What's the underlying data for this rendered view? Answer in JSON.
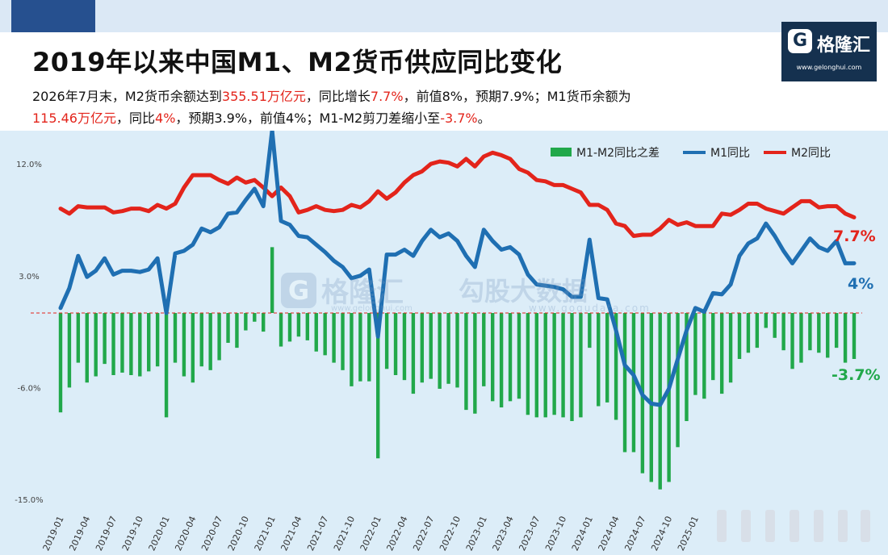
{
  "title": "2019年以来中国M1、M2货币供应同比变化",
  "subtitle": {
    "l1_a": "2026年7月末，M2货币余额达到",
    "l1_b": "355.51万亿元",
    "l1_c": "，同比增长",
    "l1_d": "7.7%",
    "l1_e": "，前值8%，预期7.9%；M1货币余额为",
    "l2_a": "115.46万亿元",
    "l2_b": "，同比",
    "l2_c": "4%",
    "l2_d": "，预期3.9%，前值4%；M1-M2剪刀差缩小至",
    "l2_e": "-3.7%",
    "l2_f": "。"
  },
  "logo": {
    "mark": "G",
    "name": "格隆汇",
    "url": "www.gelonghui.com"
  },
  "watermark": {
    "mark": "G",
    "name": "格隆汇",
    "url": "www.gelonghui.com",
    "name2": "勾股大数据",
    "url2": "www.gogudata.com"
  },
  "colors": {
    "bg": "#dcedf8",
    "m2": "#e3241b",
    "m1": "#1f6fb2",
    "diff": "#21a84a",
    "zero": "#e3241b"
  },
  "chart_data": {
    "type": "line+bar",
    "x": [
      "2019-01",
      "2019-02",
      "2019-03",
      "2019-04",
      "2019-05",
      "2019-06",
      "2019-07",
      "2019-08",
      "2019-09",
      "2019-10",
      "2019-11",
      "2019-12",
      "2020-01",
      "2020-02",
      "2020-03",
      "2020-04",
      "2020-05",
      "2020-06",
      "2020-07",
      "2020-08",
      "2020-09",
      "2020-10",
      "2020-11",
      "2020-12",
      "2021-01",
      "2021-02",
      "2021-03",
      "2021-04",
      "2021-05",
      "2021-06",
      "2021-07",
      "2021-08",
      "2021-09",
      "2021-10",
      "2021-11",
      "2021-12",
      "2022-01",
      "2022-02",
      "2022-03",
      "2022-04",
      "2022-05",
      "2022-06",
      "2022-07",
      "2022-08",
      "2022-09",
      "2022-10",
      "2022-11",
      "2022-12",
      "2023-01",
      "2023-02",
      "2023-03",
      "2023-04",
      "2023-05",
      "2023-06",
      "2023-07",
      "2023-08",
      "2023-09",
      "2023-10",
      "2023-11",
      "2023-12",
      "2024-01",
      "2024-02",
      "2024-03",
      "2024-04",
      "2024-05",
      "2024-06",
      "2024-07",
      "2024-08",
      "2024-09",
      "2024-10",
      "2024-11",
      "2024-12",
      "2025-01",
      "2025-02",
      "2025-03",
      "2025-04",
      "2025-05",
      "2025-06",
      "2025-07",
      "2025-08",
      "2025-09",
      "2025-10",
      "2025-11",
      "2025-12",
      "2026-01",
      "2026-02",
      "2026-03",
      "2026-04",
      "2026-05",
      "2026-06",
      "2026-07"
    ],
    "xticks": [
      "2019-01",
      "2019-04",
      "2019-07",
      "2019-10",
      "2020-01",
      "2020-04",
      "2020-07",
      "2020-10",
      "2021-01",
      "2021-04",
      "2021-07",
      "2021-10",
      "2022-01",
      "2022-04",
      "2022-07",
      "2022-10",
      "2023-01",
      "2023-04",
      "2023-07",
      "2023-10",
      "2024-01",
      "2024-04",
      "2024-07",
      "2024-10",
      "2025-01"
    ],
    "yticks": [
      "12.0%",
      "3.0%",
      "-6.0%",
      "-15.0%"
    ],
    "ytick_values": [
      12,
      3,
      -6,
      -15
    ],
    "ylim": [
      -15,
      14
    ],
    "zero_line": true,
    "legend": {
      "position": "top-right",
      "items": [
        "M1-M2同比之差",
        "M1同比",
        "M2同比"
      ]
    },
    "series": [
      {
        "name": "M2同比",
        "color": "#e3241b",
        "values": [
          8.4,
          8.0,
          8.6,
          8.5,
          8.5,
          8.5,
          8.1,
          8.2,
          8.4,
          8.4,
          8.2,
          8.7,
          8.4,
          8.8,
          10.1,
          11.1,
          11.1,
          11.1,
          10.7,
          10.4,
          10.9,
          10.5,
          10.7,
          10.1,
          9.4,
          10.1,
          9.4,
          8.1,
          8.3,
          8.6,
          8.3,
          8.2,
          8.3,
          8.7,
          8.5,
          9.0,
          9.8,
          9.2,
          9.7,
          10.5,
          11.1,
          11.4,
          12.0,
          12.2,
          12.1,
          11.8,
          12.4,
          11.8,
          12.6,
          12.9,
          12.7,
          12.4,
          11.6,
          11.3,
          10.7,
          10.6,
          10.3,
          10.3,
          10.0,
          9.7,
          8.7,
          8.7,
          8.3,
          7.2,
          7.0,
          6.2,
          6.3,
          6.3,
          6.8,
          7.5,
          7.1,
          7.3,
          7.0,
          7.0,
          7.0,
          8.0,
          7.9,
          8.3,
          8.8,
          8.8,
          8.4,
          8.2,
          8.0,
          8.5,
          9.0,
          9.0,
          8.5,
          8.6,
          8.6,
          8.0,
          7.7
        ]
      },
      {
        "name": "M1同比",
        "color": "#1f6fb2",
        "values": [
          0.4,
          2.0,
          4.6,
          2.9,
          3.4,
          4.4,
          3.1,
          3.4,
          3.4,
          3.3,
          3.5,
          4.4,
          0.0,
          4.8,
          5.0,
          5.5,
          6.8,
          6.5,
          6.9,
          8.0,
          8.1,
          9.1,
          10.0,
          8.6,
          14.7,
          7.4,
          7.1,
          6.2,
          6.1,
          5.5,
          4.9,
          4.2,
          3.7,
          2.8,
          3.0,
          3.5,
          -1.9,
          4.7,
          4.7,
          5.1,
          4.6,
          5.8,
          6.7,
          6.1,
          6.4,
          5.8,
          4.6,
          3.7,
          6.7,
          5.8,
          5.1,
          5.3,
          4.7,
          3.1,
          2.3,
          2.2,
          2.1,
          1.9,
          1.3,
          1.3,
          5.9,
          1.2,
          1.1,
          -1.4,
          -4.2,
          -5.0,
          -6.6,
          -7.3,
          -7.4,
          -6.1,
          -3.7,
          -1.4,
          0.4,
          0.1,
          1.6,
          1.5,
          2.3,
          4.6,
          5.6,
          6.0,
          7.2,
          6.2,
          5.0,
          4.0,
          5.0,
          6.0,
          5.3,
          5.0,
          5.8,
          4.0,
          4.0
        ]
      },
      {
        "name": "M1-M2同比之差",
        "color": "#21a84a",
        "type": "bar",
        "values": [
          -8.0,
          -6.0,
          -4.0,
          -5.6,
          -5.1,
          -4.1,
          -5.0,
          -4.8,
          -5.0,
          -5.1,
          -4.7,
          -4.3,
          -8.4,
          -4.0,
          -5.1,
          -5.6,
          -4.3,
          -4.6,
          -3.8,
          -2.4,
          -2.8,
          -1.4,
          -0.7,
          -1.5,
          5.3,
          -2.7,
          -2.3,
          -1.9,
          -2.2,
          -3.1,
          -3.4,
          -4.0,
          -4.6,
          -5.9,
          -5.5,
          -5.5,
          -11.7,
          -4.5,
          -5.0,
          -5.4,
          -6.5,
          -5.6,
          -5.3,
          -6.1,
          -5.7,
          -6.0,
          -7.8,
          -8.1,
          -5.9,
          -7.1,
          -7.6,
          -7.1,
          -6.9,
          -8.2,
          -8.4,
          -8.4,
          -8.2,
          -8.4,
          -8.7,
          -8.4,
          -2.8,
          -7.5,
          -7.2,
          -8.6,
          -11.2,
          -11.2,
          -12.9,
          -13.6,
          -14.2,
          -13.6,
          -10.8,
          -8.7,
          -6.6,
          -6.9,
          -5.4,
          -6.5,
          -5.6,
          -3.7,
          -3.2,
          -2.8,
          -1.2,
          -2.0,
          -3.0,
          -4.5,
          -4.0,
          -3.0,
          -3.2,
          -3.6,
          -2.8,
          -4.0,
          -3.7
        ]
      }
    ],
    "end_labels": {
      "m2": "7.7%",
      "m1": "4%",
      "diff": "-3.7%"
    }
  }
}
